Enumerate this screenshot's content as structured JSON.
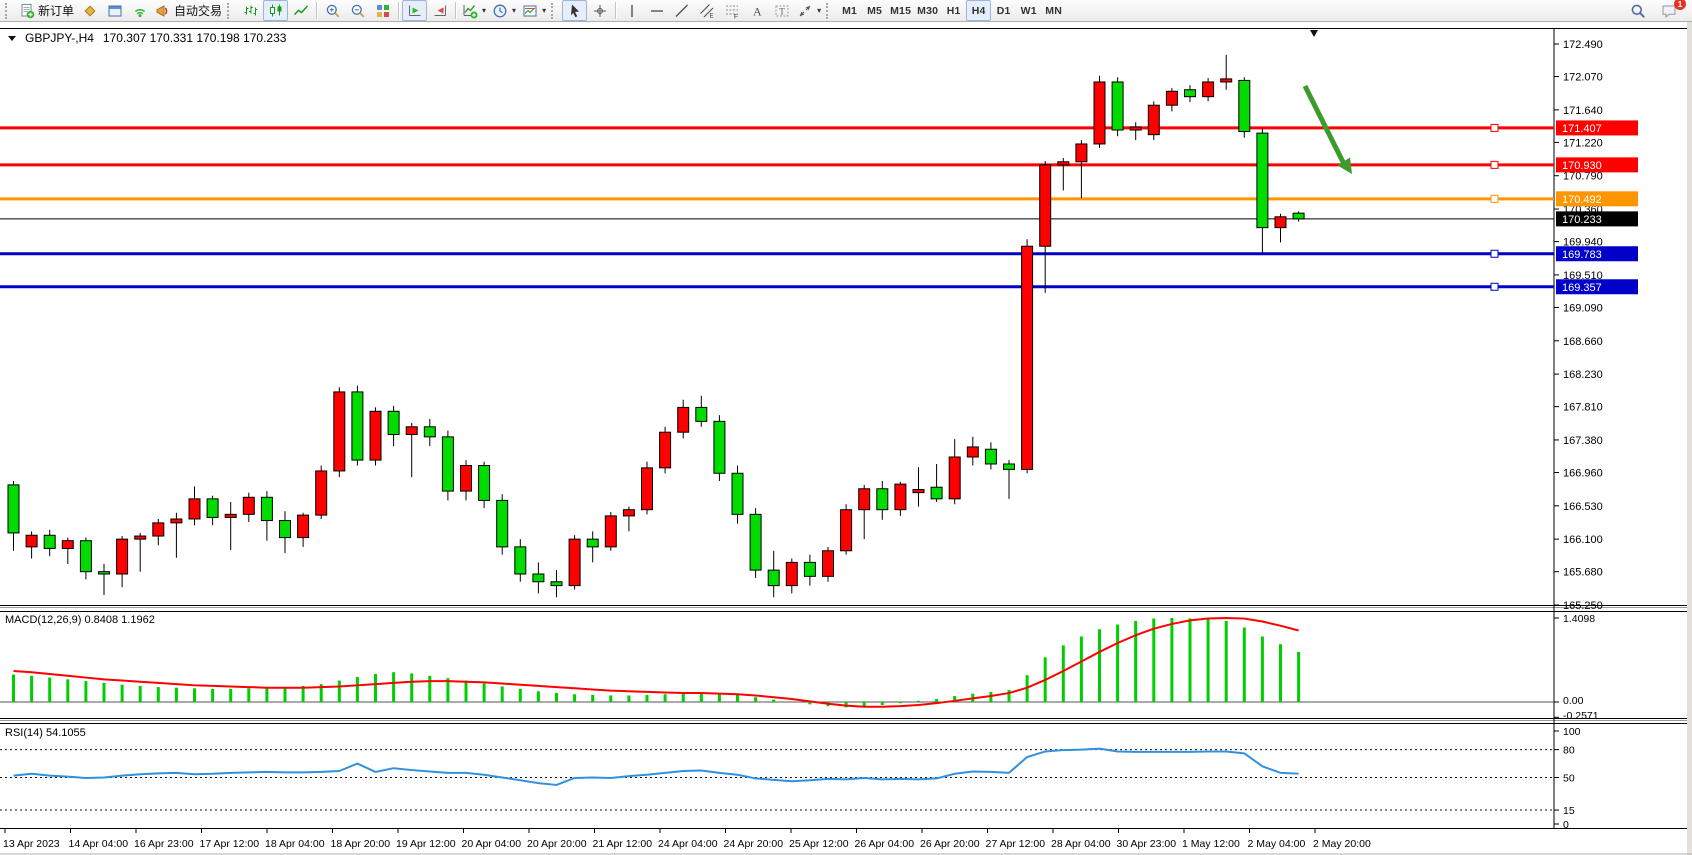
{
  "toolbar": {
    "groups": [
      {
        "grip": true,
        "items": [
          {
            "name": "new-order-button",
            "icon": "new-order",
            "label": "新订单"
          },
          {
            "name": "market-watch-button",
            "icon": "market-watch"
          },
          {
            "name": "data-window-button",
            "icon": "data-window"
          },
          {
            "name": "signals-button",
            "icon": "signals"
          },
          {
            "name": "autotrading-button",
            "icon": "autotrading",
            "label": "自动交易"
          }
        ]
      },
      {
        "grip": true,
        "items": [
          {
            "name": "bar-chart-button",
            "icon": "bars"
          },
          {
            "name": "candlestick-button",
            "icon": "candles",
            "pressed": true
          },
          {
            "name": "line-chart-button",
            "icon": "linechart"
          }
        ]
      },
      {
        "items": [
          {
            "name": "zoom-in-button",
            "icon": "zoom-in"
          },
          {
            "name": "zoom-out-button",
            "icon": "zoom-out"
          },
          {
            "name": "tile-windows-button",
            "icon": "tile"
          }
        ]
      },
      {
        "items": [
          {
            "name": "auto-scroll-button",
            "icon": "auto-scroll",
            "pressed": true
          },
          {
            "name": "chart-shift-button",
            "icon": "chart-shift"
          }
        ]
      },
      {
        "items": [
          {
            "name": "indicators-button",
            "icon": "indicators",
            "dropdown": true
          },
          {
            "name": "periods-button",
            "icon": "clock",
            "dropdown": true
          },
          {
            "name": "templates-button",
            "icon": "template",
            "dropdown": true
          }
        ]
      },
      {
        "grip": true,
        "items": [
          {
            "name": "cursor-button",
            "icon": "cursor",
            "pressed": true
          },
          {
            "name": "crosshair-button",
            "icon": "crosshair"
          }
        ]
      },
      {
        "items": [
          {
            "name": "vertical-line-button",
            "icon": "vline"
          },
          {
            "name": "horizontal-line-button",
            "icon": "hline"
          },
          {
            "name": "trendline-button",
            "icon": "trendline"
          },
          {
            "name": "equidistant-channel-button",
            "icon": "channel"
          },
          {
            "name": "fibonacci-button",
            "icon": "fibo"
          },
          {
            "name": "text-button",
            "icon": "text-a"
          },
          {
            "name": "text-label-button",
            "icon": "text-label"
          },
          {
            "name": "arrows-button",
            "icon": "arrows",
            "dropdown": true
          }
        ]
      },
      {
        "grip": true,
        "timeframes": true,
        "items": [
          {
            "name": "timeframe-m1",
            "label": "M1"
          },
          {
            "name": "timeframe-m5",
            "label": "M5"
          },
          {
            "name": "timeframe-m15",
            "label": "M15"
          },
          {
            "name": "timeframe-m30",
            "label": "M30"
          },
          {
            "name": "timeframe-h1",
            "label": "H1"
          },
          {
            "name": "timeframe-h4",
            "label": "H4",
            "pressed": true
          },
          {
            "name": "timeframe-d1",
            "label": "D1"
          },
          {
            "name": "timeframe-w1",
            "label": "W1"
          },
          {
            "name": "timeframe-mn",
            "label": "MN"
          }
        ]
      }
    ],
    "right": [
      {
        "name": "search-button",
        "icon": "search"
      },
      {
        "name": "chat-button",
        "icon": "chat",
        "badge": "1"
      }
    ]
  },
  "chart": {
    "title": {
      "symbol_period": "GBPJPY-,H4",
      "ohlc": "170.307 170.331 170.198 170.233"
    }
  },
  "chart_data": {
    "type": "candlestick",
    "symbol": "GBPJPY-",
    "timeframe": "H4",
    "ohlc_display": {
      "open": "170.307",
      "high": "170.331",
      "low": "170.198",
      "close": "170.233"
    },
    "colors": {
      "up_candle": "#FF0000",
      "down_candle": "#00DC00",
      "wick": "#000000",
      "macd_histogram": "#00CE00",
      "macd_signal": "#FF0000",
      "rsi_line": "#3191E0",
      "line_red": "#FF0000",
      "line_orange": "#FF9500",
      "line_blue": "#0000C8",
      "current_price_tag": "#000000",
      "annotation_arrow": "#3C9A2F",
      "background": "#FFFFFF"
    },
    "price_axis_ticks": [
      "172.490",
      "172.070",
      "171.640",
      "171.220",
      "170.790",
      "170.360",
      "169.940",
      "169.510",
      "169.090",
      "168.660",
      "168.230",
      "167.810",
      "167.380",
      "166.960",
      "166.530",
      "166.100",
      "165.680",
      "165.250"
    ],
    "price_range": {
      "max": 172.49,
      "min": 165.25
    },
    "horizontal_lines": [
      {
        "price": 171.407,
        "label": "171.407",
        "color": "#FF0000"
      },
      {
        "price": 170.93,
        "label": "170.930",
        "color": "#FF0000"
      },
      {
        "price": 170.492,
        "label": "170.492",
        "color": "#FF9500"
      },
      {
        "price": 169.783,
        "label": "169.783",
        "color": "#0000C8"
      },
      {
        "price": 169.357,
        "label": "169.357",
        "color": "#0000C8"
      }
    ],
    "current_price": {
      "value": 170.233,
      "label": "170.233"
    },
    "candles": [
      [
        166.8,
        166.85,
        165.95,
        166.18
      ],
      [
        166.0,
        166.2,
        165.85,
        166.15
      ],
      [
        166.15,
        166.22,
        165.88,
        165.98
      ],
      [
        165.98,
        166.12,
        165.78,
        166.08
      ],
      [
        166.08,
        166.12,
        165.58,
        165.68
      ],
      [
        165.68,
        165.78,
        165.38,
        165.65
      ],
      [
        165.65,
        166.14,
        165.48,
        166.1
      ],
      [
        166.1,
        166.18,
        165.68,
        166.14
      ],
      [
        166.14,
        166.36,
        166.02,
        166.31
      ],
      [
        166.31,
        166.44,
        165.86,
        166.36
      ],
      [
        166.36,
        166.78,
        166.28,
        166.62
      ],
      [
        166.62,
        166.66,
        166.28,
        166.38
      ],
      [
        166.38,
        166.58,
        165.96,
        166.42
      ],
      [
        166.42,
        166.7,
        166.32,
        166.64
      ],
      [
        166.64,
        166.72,
        166.08,
        166.34
      ],
      [
        166.34,
        166.46,
        165.92,
        166.12
      ],
      [
        166.12,
        166.44,
        166.0,
        166.41
      ],
      [
        166.41,
        167.05,
        166.36,
        166.98
      ],
      [
        166.98,
        168.06,
        166.9,
        168.0
      ],
      [
        168.0,
        168.08,
        167.05,
        167.12
      ],
      [
        167.12,
        167.8,
        167.05,
        167.75
      ],
      [
        167.75,
        167.82,
        167.3,
        167.45
      ],
      [
        167.45,
        167.6,
        166.9,
        167.55
      ],
      [
        167.55,
        167.65,
        167.3,
        167.42
      ],
      [
        167.42,
        167.5,
        166.6,
        166.72
      ],
      [
        166.72,
        167.12,
        166.6,
        167.05
      ],
      [
        167.05,
        167.1,
        166.5,
        166.6
      ],
      [
        166.6,
        166.68,
        165.9,
        166.0
      ],
      [
        166.0,
        166.1,
        165.55,
        165.65
      ],
      [
        165.65,
        165.8,
        165.4,
        165.55
      ],
      [
        165.55,
        165.7,
        165.35,
        165.5
      ],
      [
        165.5,
        166.15,
        165.45,
        166.1
      ],
      [
        166.1,
        166.2,
        165.8,
        166.0
      ],
      [
        166.0,
        166.45,
        165.95,
        166.4
      ],
      [
        166.4,
        166.52,
        166.2,
        166.48
      ],
      [
        166.48,
        167.1,
        166.42,
        167.02
      ],
      [
        167.02,
        167.55,
        166.95,
        167.48
      ],
      [
        167.48,
        167.9,
        167.4,
        167.8
      ],
      [
        167.8,
        167.95,
        167.55,
        167.62
      ],
      [
        167.62,
        167.7,
        166.85,
        166.95
      ],
      [
        166.95,
        167.05,
        166.3,
        166.42
      ],
      [
        166.42,
        166.5,
        165.6,
        165.7
      ],
      [
        165.7,
        165.95,
        165.35,
        165.5
      ],
      [
        165.5,
        165.85,
        165.4,
        165.8
      ],
      [
        165.8,
        165.9,
        165.5,
        165.62
      ],
      [
        165.62,
        166.0,
        165.55,
        165.95
      ],
      [
        165.95,
        166.55,
        165.9,
        166.48
      ],
      [
        166.48,
        166.8,
        166.1,
        166.75
      ],
      [
        166.75,
        166.85,
        166.35,
        166.48
      ],
      [
        166.48,
        166.84,
        166.4,
        166.81
      ],
      [
        166.7,
        167.03,
        166.52,
        166.74
      ],
      [
        166.77,
        167.07,
        166.58,
        166.62
      ],
      [
        166.62,
        167.39,
        166.55,
        167.16
      ],
      [
        167.16,
        167.42,
        167.05,
        167.29
      ],
      [
        167.26,
        167.35,
        167.0,
        167.07
      ],
      [
        167.07,
        167.12,
        166.62,
        167.0
      ],
      [
        167.0,
        169.97,
        166.95,
        169.88
      ],
      [
        169.88,
        170.98,
        169.28,
        170.93
      ],
      [
        170.93,
        171.02,
        170.6,
        170.97
      ],
      [
        170.97,
        171.25,
        170.5,
        171.2
      ],
      [
        171.2,
        172.08,
        171.15,
        172.0
      ],
      [
        172.0,
        172.06,
        171.3,
        171.38
      ],
      [
        171.38,
        171.48,
        171.25,
        171.42
      ],
      [
        171.32,
        171.75,
        171.25,
        171.7
      ],
      [
        171.7,
        171.92,
        171.62,
        171.88
      ],
      [
        171.9,
        171.96,
        171.74,
        171.81
      ],
      [
        171.81,
        172.05,
        171.75,
        172.0
      ],
      [
        172.0,
        172.35,
        171.9,
        172.04
      ],
      [
        172.02,
        172.06,
        171.28,
        171.36
      ],
      [
        171.34,
        171.4,
        169.8,
        170.12
      ],
      [
        170.12,
        170.3,
        169.93,
        170.26
      ],
      [
        170.307,
        170.331,
        170.198,
        170.233
      ]
    ],
    "macd": {
      "label_full": "MACD(12,26,9) 0.8408 1.1962",
      "name": "MACD(12,26,9)",
      "value_main": "0.8408",
      "value_signal": "1.1962",
      "axis_labels": [
        "1.4098",
        "0.00",
        "-0.2571"
      ],
      "axis_values": [
        1.4098,
        0.0,
        -0.2571
      ],
      "histogram": [
        0.46,
        0.44,
        0.41,
        0.38,
        0.35,
        0.32,
        0.29,
        0.27,
        0.25,
        0.24,
        0.23,
        0.22,
        0.22,
        0.23,
        0.24,
        0.25,
        0.27,
        0.3,
        0.36,
        0.42,
        0.47,
        0.5,
        0.48,
        0.44,
        0.4,
        0.36,
        0.31,
        0.26,
        0.22,
        0.18,
        0.15,
        0.13,
        0.12,
        0.11,
        0.11,
        0.12,
        0.13,
        0.14,
        0.15,
        0.14,
        0.12,
        0.08,
        0.04,
        0.0,
        -0.04,
        -0.07,
        -0.09,
        -0.08,
        -0.05,
        -0.02,
        0.02,
        0.05,
        0.1,
        0.14,
        0.17,
        0.2,
        0.45,
        0.75,
        0.95,
        1.1,
        1.22,
        1.3,
        1.36,
        1.4,
        1.41,
        1.4,
        1.39,
        1.36,
        1.25,
        1.1,
        0.97,
        0.84
      ],
      "signal": [
        0.52,
        0.5,
        0.47,
        0.44,
        0.41,
        0.38,
        0.36,
        0.34,
        0.32,
        0.3,
        0.28,
        0.27,
        0.26,
        0.25,
        0.24,
        0.24,
        0.24,
        0.25,
        0.26,
        0.28,
        0.3,
        0.32,
        0.34,
        0.35,
        0.35,
        0.34,
        0.33,
        0.31,
        0.29,
        0.27,
        0.25,
        0.23,
        0.21,
        0.19,
        0.18,
        0.17,
        0.16,
        0.15,
        0.15,
        0.14,
        0.13,
        0.11,
        0.08,
        0.05,
        0.01,
        -0.03,
        -0.06,
        -0.08,
        -0.08,
        -0.07,
        -0.05,
        -0.02,
        0.02,
        0.06,
        0.1,
        0.15,
        0.24,
        0.37,
        0.52,
        0.68,
        0.84,
        0.99,
        1.12,
        1.23,
        1.31,
        1.37,
        1.4,
        1.41,
        1.4,
        1.35,
        1.28,
        1.2
      ]
    },
    "rsi": {
      "label_full": "RSI(14) 54.1055",
      "name": "RSI(14)",
      "value": "54.1055",
      "axis_labels": [
        "100",
        "80",
        "50",
        "15",
        "0"
      ],
      "axis_values": [
        100,
        80,
        50,
        15,
        0
      ],
      "dashed_levels": [
        80,
        50,
        15
      ],
      "values": [
        52,
        54,
        52,
        51,
        49.5,
        50,
        52,
        53.5,
        54.5,
        55,
        53.5,
        54,
        55,
        55.5,
        56,
        55.5,
        55.5,
        56,
        57,
        65,
        56,
        60,
        58,
        56.5,
        55,
        55,
        53,
        50,
        47,
        44,
        42,
        49.5,
        50,
        49.5,
        51.5,
        53,
        55,
        57,
        57.5,
        55,
        53,
        49,
        47.5,
        46,
        47,
        48.5,
        48,
        49.5,
        48,
        48.5,
        48,
        49,
        54,
        56.5,
        56,
        55,
        72,
        78,
        79.5,
        80,
        81,
        78,
        77.5,
        77.5,
        77.5,
        77.5,
        78,
        78,
        76,
        62,
        55,
        54.1
      ]
    },
    "x_axis_labels": [
      "13 Apr 2023",
      "14 Apr 04:00",
      "16 Apr 23:00",
      "17 Apr 12:00",
      "18 Apr 04:00",
      "18 Apr 20:00",
      "19 Apr 12:00",
      "20 Apr 04:00",
      "20 Apr 20:00",
      "21 Apr 12:00",
      "24 Apr 04:00",
      "24 Apr 20:00",
      "25 Apr 12:00",
      "26 Apr 04:00",
      "26 Apr 20:00",
      "27 Apr 12:00",
      "28 Apr 04:00",
      "30 Apr 23:00",
      "1 May 12:00",
      "2 May 04:00",
      "2 May 20:00"
    ],
    "annotations": {
      "down_arrow": {
        "color": "#3C9A2F",
        "from_price": 171.95,
        "to_price": 170.85,
        "note": "green sell arrow drawn over empty area right of last candles"
      },
      "top_triangle_marker": true
    },
    "legend_position": "none",
    "grid": false
  }
}
